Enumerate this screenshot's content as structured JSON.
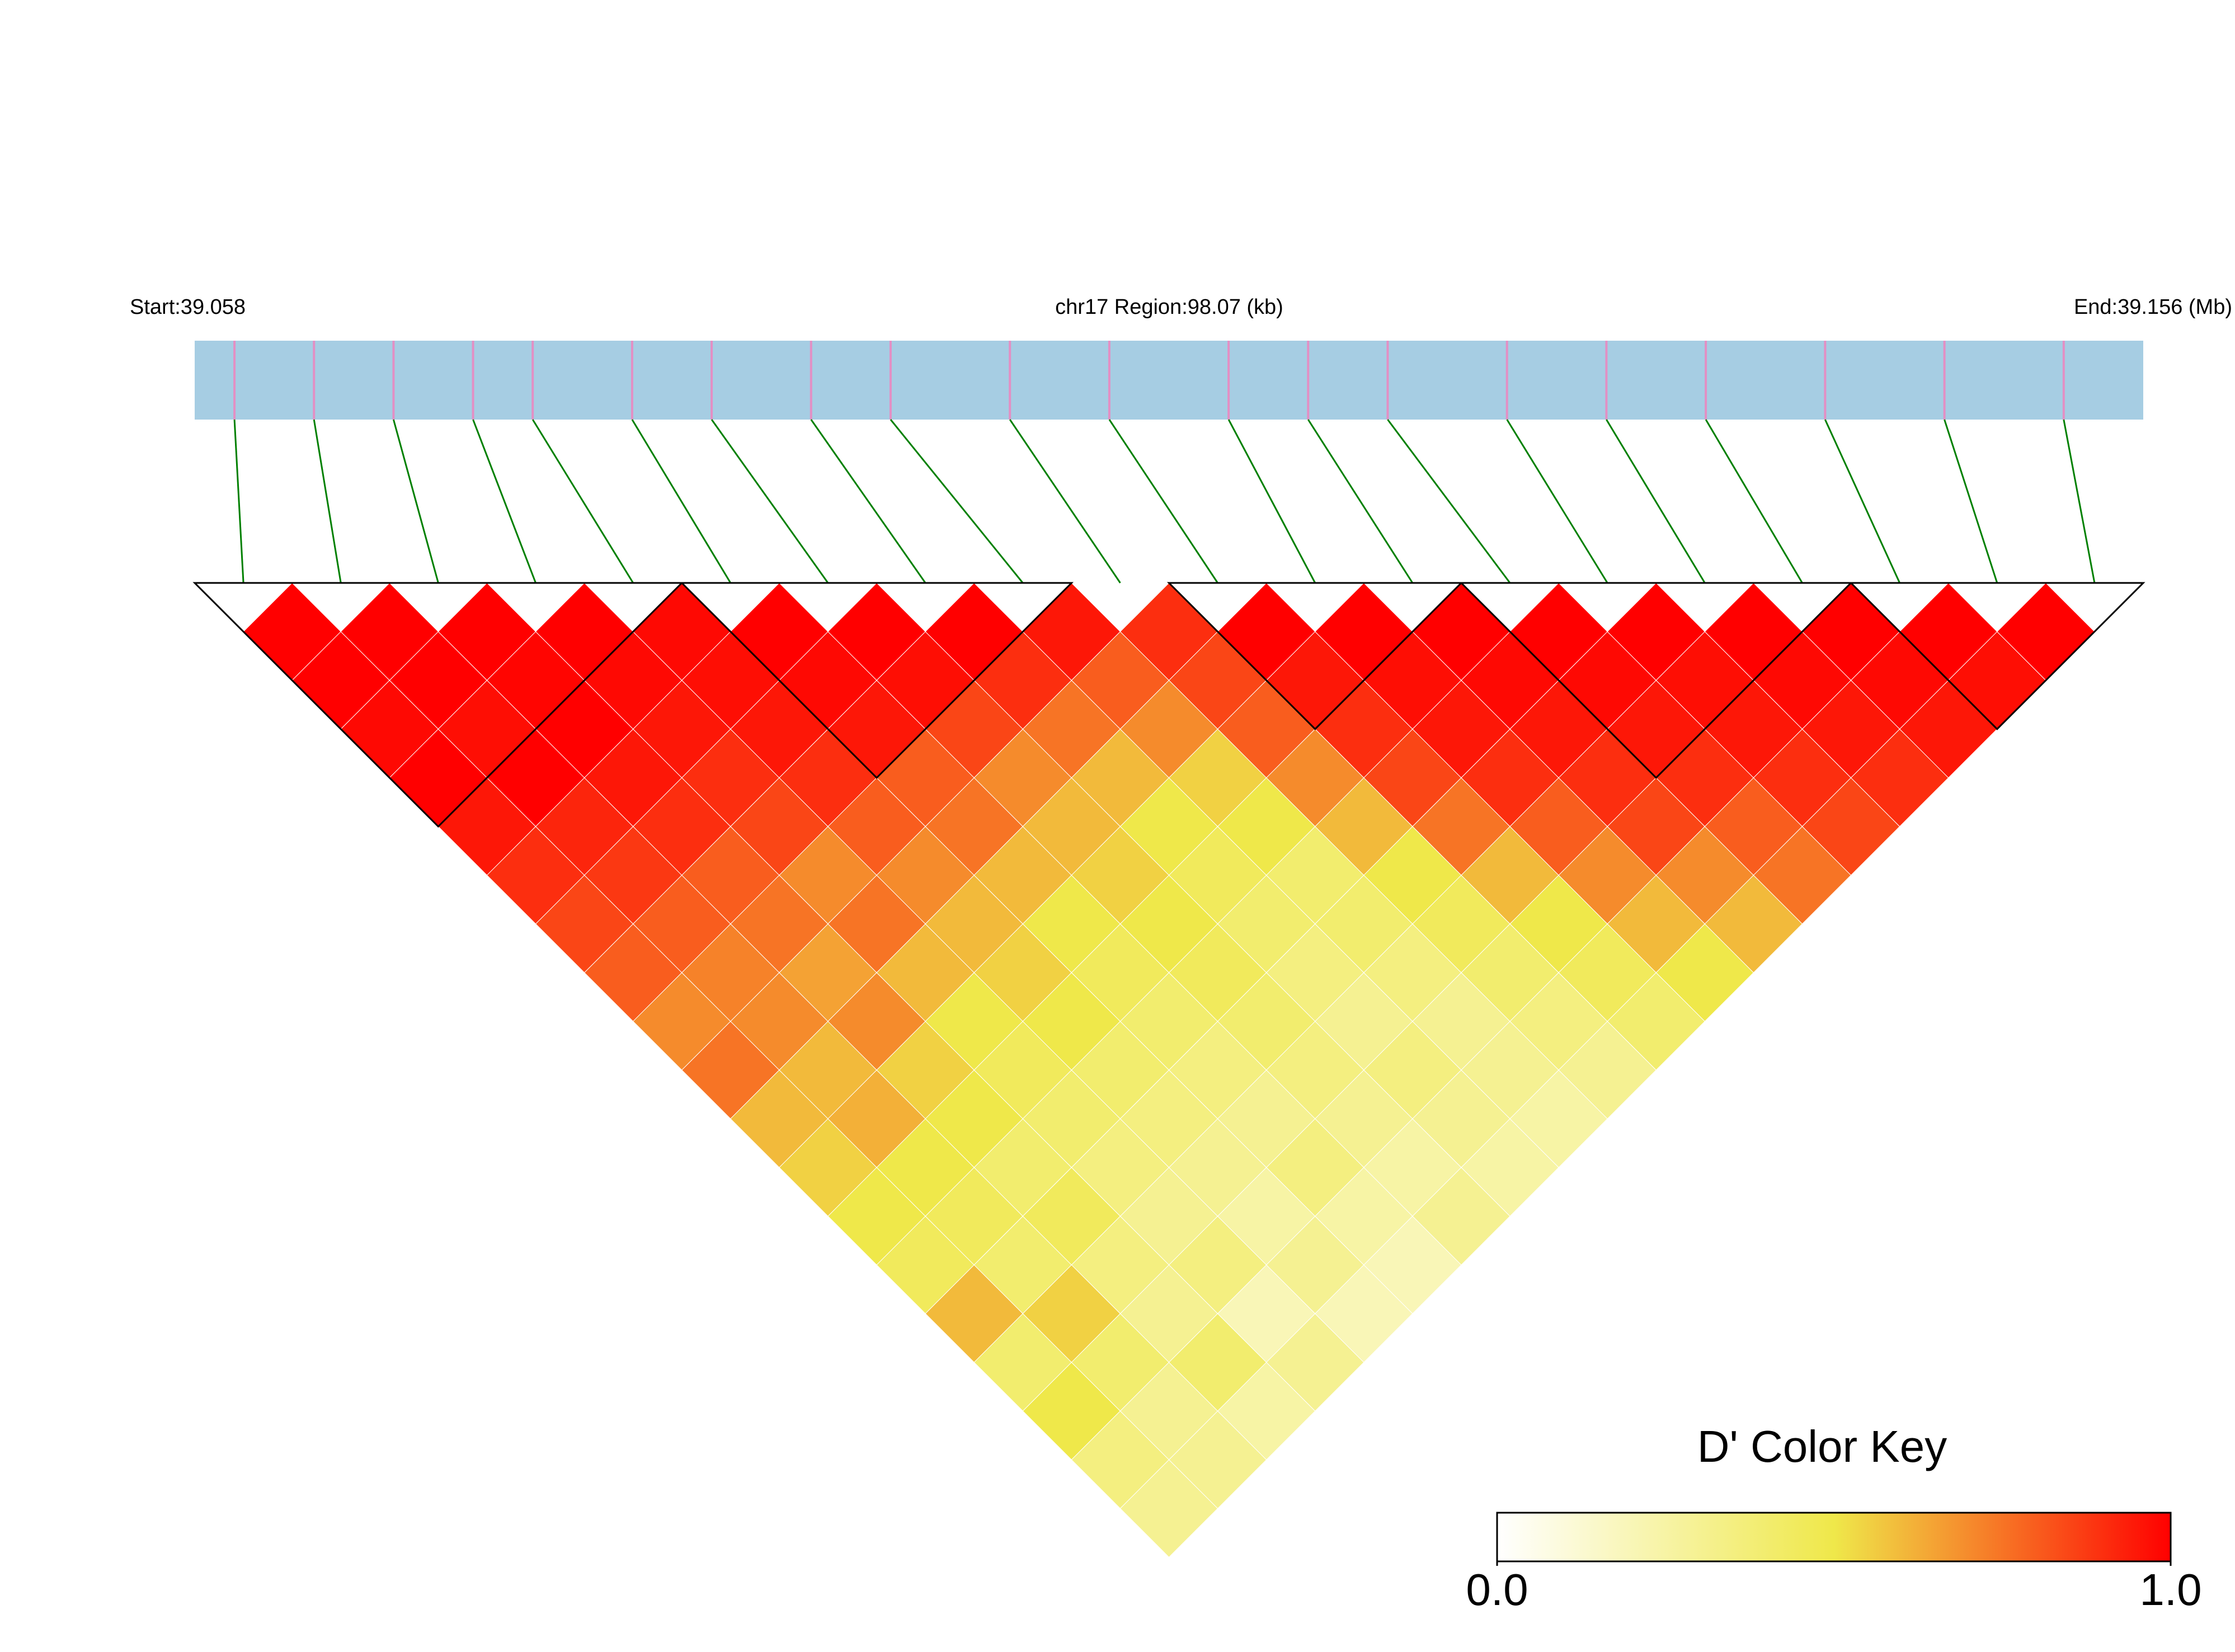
{
  "chart_data": {
    "type": "ld_heatmap",
    "start_label": "Start:39.058",
    "region_label": "chr17 Region:98.07 (kb)",
    "end_label": "End:39.156 (Mb)",
    "xlim": [
      39.058,
      39.156
    ],
    "positions": [
      39.06,
      39.064,
      39.068,
      39.072,
      39.075,
      39.08,
      39.084,
      39.089,
      39.093,
      39.099,
      39.104,
      39.11,
      39.114,
      39.118,
      39.124,
      39.129,
      39.134,
      39.14,
      39.146,
      39.152
    ],
    "dprime": [
      [
        1,
        1,
        0.98,
        1,
        0.95,
        0.9,
        0.85,
        0.8,
        0.7,
        0.75,
        0.6,
        0.55,
        0.5,
        0.45,
        0.6,
        0.4,
        0.5,
        0.35,
        0.3
      ],
      [
        1,
        1,
        0.97,
        1,
        0.92,
        0.88,
        0.8,
        0.72,
        0.7,
        0.6,
        0.62,
        0.5,
        0.45,
        0.4,
        0.55,
        0.4,
        0.3,
        0.3
      ],
      [
        1,
        0.99,
        1,
        0.95,
        0.9,
        0.8,
        0.75,
        0.65,
        0.7,
        0.55,
        0.5,
        0.4,
        0.45,
        0.35,
        0.3,
        0.4,
        0.25
      ],
      [
        1,
        0.98,
        0.95,
        0.9,
        0.85,
        0.7,
        0.75,
        0.6,
        0.5,
        0.45,
        0.4,
        0.35,
        0.3,
        0.35,
        0.2,
        0.3
      ],
      [
        0.98,
        0.97,
        0.95,
        0.9,
        0.8,
        0.7,
        0.6,
        0.55,
        0.5,
        0.4,
        0.35,
        0.3,
        0.25,
        0.3,
        0.2
      ],
      [
        1,
        0.98,
        0.95,
        0.8,
        0.75,
        0.6,
        0.5,
        0.45,
        0.4,
        0.35,
        0.3,
        0.35,
        0.25,
        0.2
      ],
      [
        1,
        0.97,
        0.85,
        0.7,
        0.6,
        0.55,
        0.5,
        0.45,
        0.4,
        0.35,
        0.3,
        0.25,
        0.3
      ],
      [
        1,
        0.9,
        0.75,
        0.6,
        0.5,
        0.45,
        0.4,
        0.35,
        0.3,
        0.35,
        0.3,
        0.25
      ],
      [
        0.95,
        0.8,
        0.7,
        0.55,
        0.5,
        0.4,
        0.4,
        0.35,
        0.3,
        0.3,
        0.25
      ],
      [
        0.9,
        0.85,
        0.8,
        0.7,
        0.6,
        0.5,
        0.45,
        0.4,
        0.35,
        0.3
      ],
      [
        1,
        0.95,
        0.9,
        0.85,
        0.75,
        0.6,
        0.5,
        0.45,
        0.4
      ],
      [
        1,
        0.97,
        0.95,
        0.9,
        0.8,
        0.7,
        0.6,
        0.5
      ],
      [
        1,
        0.98,
        0.95,
        0.9,
        0.85,
        0.7,
        0.6
      ],
      [
        1,
        0.98,
        0.95,
        0.9,
        0.8,
        0.75
      ],
      [
        1,
        0.97,
        0.95,
        0.9,
        0.85
      ],
      [
        1,
        0.98,
        0.95,
        0.9
      ],
      [
        1,
        0.98,
        0.95
      ],
      [
        1,
        0.97
      ],
      [
        1
      ]
    ],
    "blocks": [
      [
        0,
        4
      ],
      [
        5,
        8
      ],
      [
        10,
        12
      ],
      [
        13,
        16
      ],
      [
        17,
        19
      ]
    ],
    "track_color": "#a6cde3",
    "snp_line_color": "#e38fc4",
    "link_color": "#008000",
    "color_key": {
      "title": "D' Color Key",
      "lim": [
        0,
        1
      ],
      "ticks": [
        {
          "value": 0,
          "label": "0.0"
        },
        {
          "value": 1,
          "label": "1.0"
        }
      ],
      "colors": [
        "#ffffff",
        "#efe84a",
        "#ff0000"
      ]
    }
  }
}
